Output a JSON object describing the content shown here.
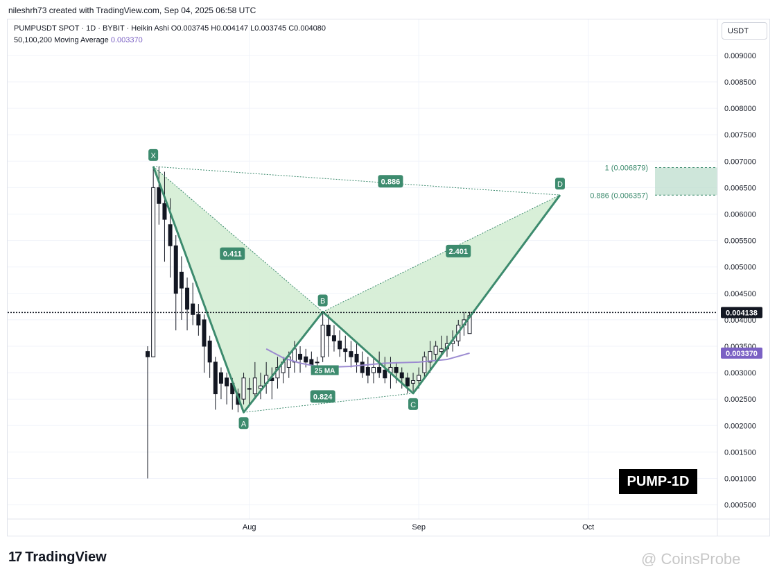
{
  "header": {
    "credit": "nileshrh73 created with TradingView.com, Sep 04, 2025 06:58 UTC"
  },
  "legend": {
    "line1": "PUMPUSDT SPOT · 1D · BYBIT · Heikin Ashi  O0.003745  H0.004147  L0.003745  C0.004080",
    "ma_label": "50,100,200 Moving Average",
    "ma_value": "0.003370"
  },
  "currency": "USDT",
  "badge": "PUMP-1D",
  "brand": {
    "logo": "17",
    "name": "TradingView"
  },
  "watermark": "@ CoinsProbe",
  "colors": {
    "bull": "#131722",
    "pattern": "#3d8b6e",
    "fill": "#d4edd4",
    "ma": "#9c8bd1",
    "zone": "#b9dccb"
  },
  "chart_data": {
    "type": "candlestick",
    "ylim": [
      0.0003,
      0.0095
    ],
    "y_ticks": [
      "0.009000",
      "0.008500",
      "0.008000",
      "0.007500",
      "0.007000",
      "0.006500",
      "0.006000",
      "0.005500",
      "0.005000",
      "0.004500",
      "0.004000",
      "0.003500",
      "0.003000",
      "0.002500",
      "0.002000",
      "0.001500",
      "0.001000",
      "0.000500"
    ],
    "x_ticks": [
      "Aug",
      "Sep",
      "Oct"
    ],
    "current_price": "0.004138",
    "ma_price": "0.003370",
    "ma_annotation": "25 MA",
    "pattern_points": [
      {
        "label": "X",
        "day": 1,
        "price": 0.0069
      },
      {
        "label": "A",
        "day": 17,
        "price": 0.00225
      },
      {
        "label": "B",
        "day": 31,
        "price": 0.00415
      },
      {
        "label": "C",
        "day": 47,
        "price": 0.00261
      },
      {
        "label": "D",
        "day": 73,
        "price": 0.00636
      }
    ],
    "ratios": [
      {
        "label": "0.886",
        "day": 43,
        "price": 0.00662
      },
      {
        "label": "0.411",
        "day": 15,
        "price": 0.00525
      },
      {
        "label": "2.401",
        "day": 55,
        "price": 0.0053
      },
      {
        "label": "0.824",
        "day": 31,
        "price": 0.00255
      }
    ],
    "zone_labels": [
      "1 (0.006879)",
      "0.886 (0.006357)"
    ],
    "candles": [
      [
        0.0034,
        0.0035,
        0.001,
        0.0033
      ],
      [
        0.0033,
        0.0069,
        0.0033,
        0.0065
      ],
      [
        0.0065,
        0.0069,
        0.0058,
        0.0062
      ],
      [
        0.0062,
        0.0068,
        0.0051,
        0.0059
      ],
      [
        0.0058,
        0.0063,
        0.0048,
        0.0054
      ],
      [
        0.0054,
        0.0056,
        0.0038,
        0.0045
      ],
      [
        0.0049,
        0.0052,
        0.004,
        0.0046
      ],
      [
        0.0046,
        0.0048,
        0.0038,
        0.0042
      ],
      [
        0.0043,
        0.0047,
        0.0039,
        0.0041
      ],
      [
        0.0041,
        0.0043,
        0.0037,
        0.0039
      ],
      [
        0.004,
        0.0041,
        0.003,
        0.0035
      ],
      [
        0.0036,
        0.0037,
        0.0029,
        0.0032
      ],
      [
        0.0032,
        0.0033,
        0.0023,
        0.0026
      ],
      [
        0.003,
        0.0031,
        0.0025,
        0.0028
      ],
      [
        0.0029,
        0.003,
        0.0024,
        0.00275
      ],
      [
        0.0028,
        0.0029,
        0.0023,
        0.0026
      ],
      [
        0.0026,
        0.0027,
        0.00225,
        0.0024
      ],
      [
        0.0025,
        0.003,
        0.0024,
        0.0029
      ],
      [
        0.0027,
        0.0029,
        0.0024,
        0.0027
      ],
      [
        0.0026,
        0.0032,
        0.0025,
        0.0029
      ],
      [
        0.0027,
        0.003,
        0.0025,
        0.00275
      ],
      [
        0.0028,
        0.0032,
        0.0026,
        0.00295
      ],
      [
        0.0029,
        0.0031,
        0.0025,
        0.00285
      ],
      [
        0.0029,
        0.0033,
        0.0027,
        0.0031
      ],
      [
        0.003,
        0.0033,
        0.0028,
        0.0032
      ],
      [
        0.0031,
        0.0034,
        0.0029,
        0.0033
      ],
      [
        0.0032,
        0.0036,
        0.003,
        0.00345
      ],
      [
        0.00335,
        0.0035,
        0.003,
        0.00325
      ],
      [
        0.0033,
        0.00345,
        0.0031,
        0.0032
      ],
      [
        0.00325,
        0.0034,
        0.003,
        0.00315
      ],
      [
        0.0032,
        0.0033,
        0.003,
        0.0032
      ],
      [
        0.0033,
        0.00415,
        0.0032,
        0.0039
      ],
      [
        0.0039,
        0.0041,
        0.0033,
        0.0037
      ],
      [
        0.0037,
        0.0039,
        0.0034,
        0.0036
      ],
      [
        0.0036,
        0.0038,
        0.0033,
        0.00345
      ],
      [
        0.00345,
        0.0037,
        0.0032,
        0.0034
      ],
      [
        0.0034,
        0.0036,
        0.0031,
        0.0033
      ],
      [
        0.00335,
        0.00355,
        0.003,
        0.0032
      ],
      [
        0.0032,
        0.0034,
        0.0029,
        0.003
      ],
      [
        0.0031,
        0.0033,
        0.0028,
        0.00295
      ],
      [
        0.003,
        0.0033,
        0.0028,
        0.0031
      ],
      [
        0.0031,
        0.0034,
        0.0029,
        0.003
      ],
      [
        0.00305,
        0.0033,
        0.0028,
        0.0029
      ],
      [
        0.003,
        0.0033,
        0.0027,
        0.0031
      ],
      [
        0.0031,
        0.0032,
        0.0028,
        0.003
      ],
      [
        0.003,
        0.0031,
        0.0027,
        0.0029
      ],
      [
        0.0029,
        0.003,
        0.00261,
        0.00275
      ],
      [
        0.0028,
        0.003,
        0.00265,
        0.00285
      ],
      [
        0.00285,
        0.0031,
        0.0027,
        0.00295
      ],
      [
        0.003,
        0.0034,
        0.0029,
        0.0033
      ],
      [
        0.0032,
        0.0036,
        0.003,
        0.0034
      ],
      [
        0.00335,
        0.0036,
        0.0032,
        0.0035
      ],
      [
        0.0034,
        0.0037,
        0.0033,
        0.00345
      ],
      [
        0.00345,
        0.0037,
        0.0033,
        0.00355
      ],
      [
        0.00355,
        0.0038,
        0.0034,
        0.0036
      ],
      [
        0.0036,
        0.004,
        0.0035,
        0.0039
      ],
      [
        0.0039,
        0.00415,
        0.0037,
        0.004
      ],
      [
        0.00374,
        0.00415,
        0.00374,
        0.00408
      ]
    ],
    "ma_curve": [
      [
        21,
        0.00345
      ],
      [
        24,
        0.00328
      ],
      [
        27,
        0.00318
      ],
      [
        31,
        0.0031
      ],
      [
        36,
        0.00312
      ],
      [
        42,
        0.00318
      ],
      [
        48,
        0.0032
      ],
      [
        53,
        0.00325
      ],
      [
        57,
        0.00337
      ]
    ]
  }
}
